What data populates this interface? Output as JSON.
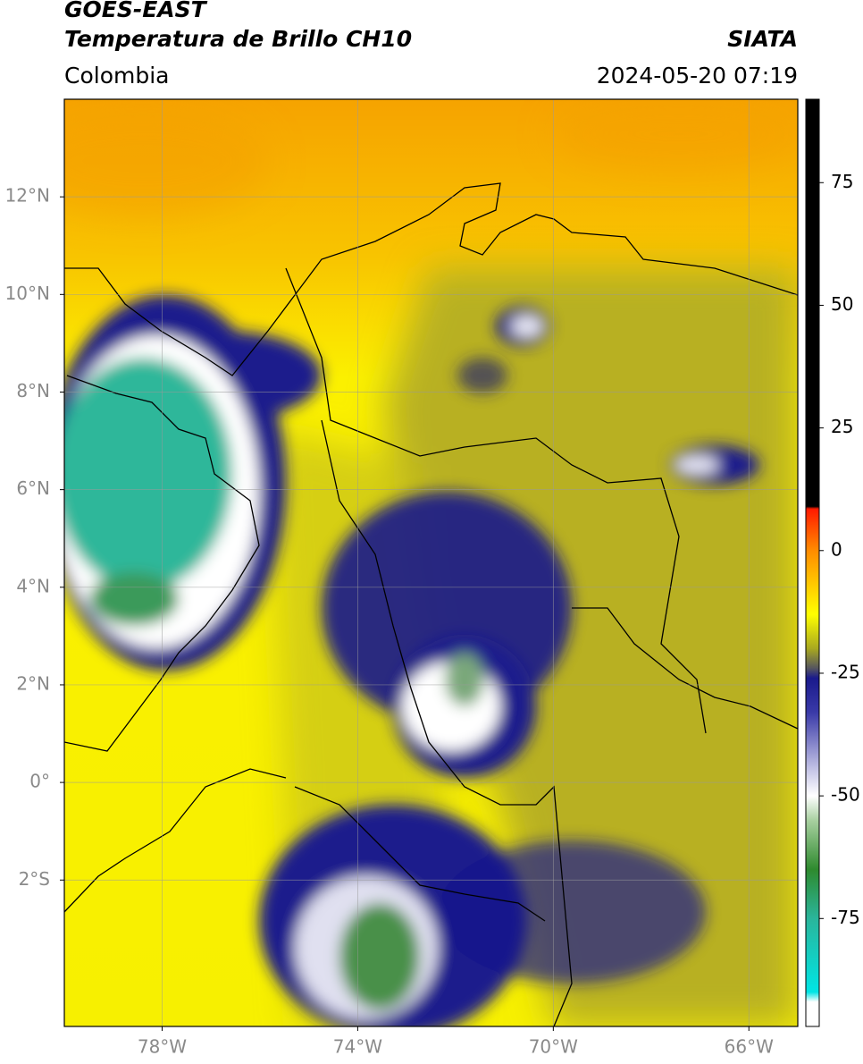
{
  "header": {
    "title": "GOES-EAST",
    "subtitle": "Temperatura de Brillo CH10",
    "source": "SIATA",
    "region": "Colombia",
    "timestamp": "2024-05-20 07:19"
  },
  "map": {
    "xlim": [
      -80,
      -65
    ],
    "ylim": [
      -5,
      14
    ],
    "xticks": [
      {
        "value": -78,
        "label": "78°W"
      },
      {
        "value": -74,
        "label": "74°W"
      },
      {
        "value": -70,
        "label": "70°W"
      },
      {
        "value": -66,
        "label": "66°W"
      }
    ],
    "yticks": [
      {
        "value": 12,
        "label": "12°N"
      },
      {
        "value": 10,
        "label": "10°N"
      },
      {
        "value": 8,
        "label": "8°N"
      },
      {
        "value": 6,
        "label": "6°N"
      },
      {
        "value": 4,
        "label": "4°N"
      },
      {
        "value": 2,
        "label": "2°N"
      },
      {
        "value": 0,
        "label": "0°"
      },
      {
        "value": -2,
        "label": "2°S"
      }
    ],
    "grid": true
  },
  "colorbar": {
    "lim": [
      -97,
      92
    ],
    "ticks": [
      75,
      50,
      25,
      0,
      -25,
      -50,
      -75
    ],
    "stops": [
      {
        "value": 92,
        "color": "#000000"
      },
      {
        "value": 9,
        "color": "#000000"
      },
      {
        "value": 8.5,
        "color": "#ff1a00"
      },
      {
        "value": 0,
        "color": "#ff8c00"
      },
      {
        "value": -13,
        "color": "#ffff00"
      },
      {
        "value": -20,
        "color": "#a8a820"
      },
      {
        "value": -24,
        "color": "#55555f"
      },
      {
        "value": -26,
        "color": "#1a1a8c"
      },
      {
        "value": -33,
        "color": "#3a3aa8"
      },
      {
        "value": -45,
        "color": "#c8c8e8"
      },
      {
        "value": -50,
        "color": "#ffffff"
      },
      {
        "value": -55,
        "color": "#a8d0a0"
      },
      {
        "value": -65,
        "color": "#2e8a2e"
      },
      {
        "value": -75,
        "color": "#2ab59b"
      },
      {
        "value": -90,
        "color": "#00e5e5"
      },
      {
        "value": -92,
        "color": "#ffffff"
      },
      {
        "value": -97,
        "color": "#ffffff"
      }
    ]
  }
}
